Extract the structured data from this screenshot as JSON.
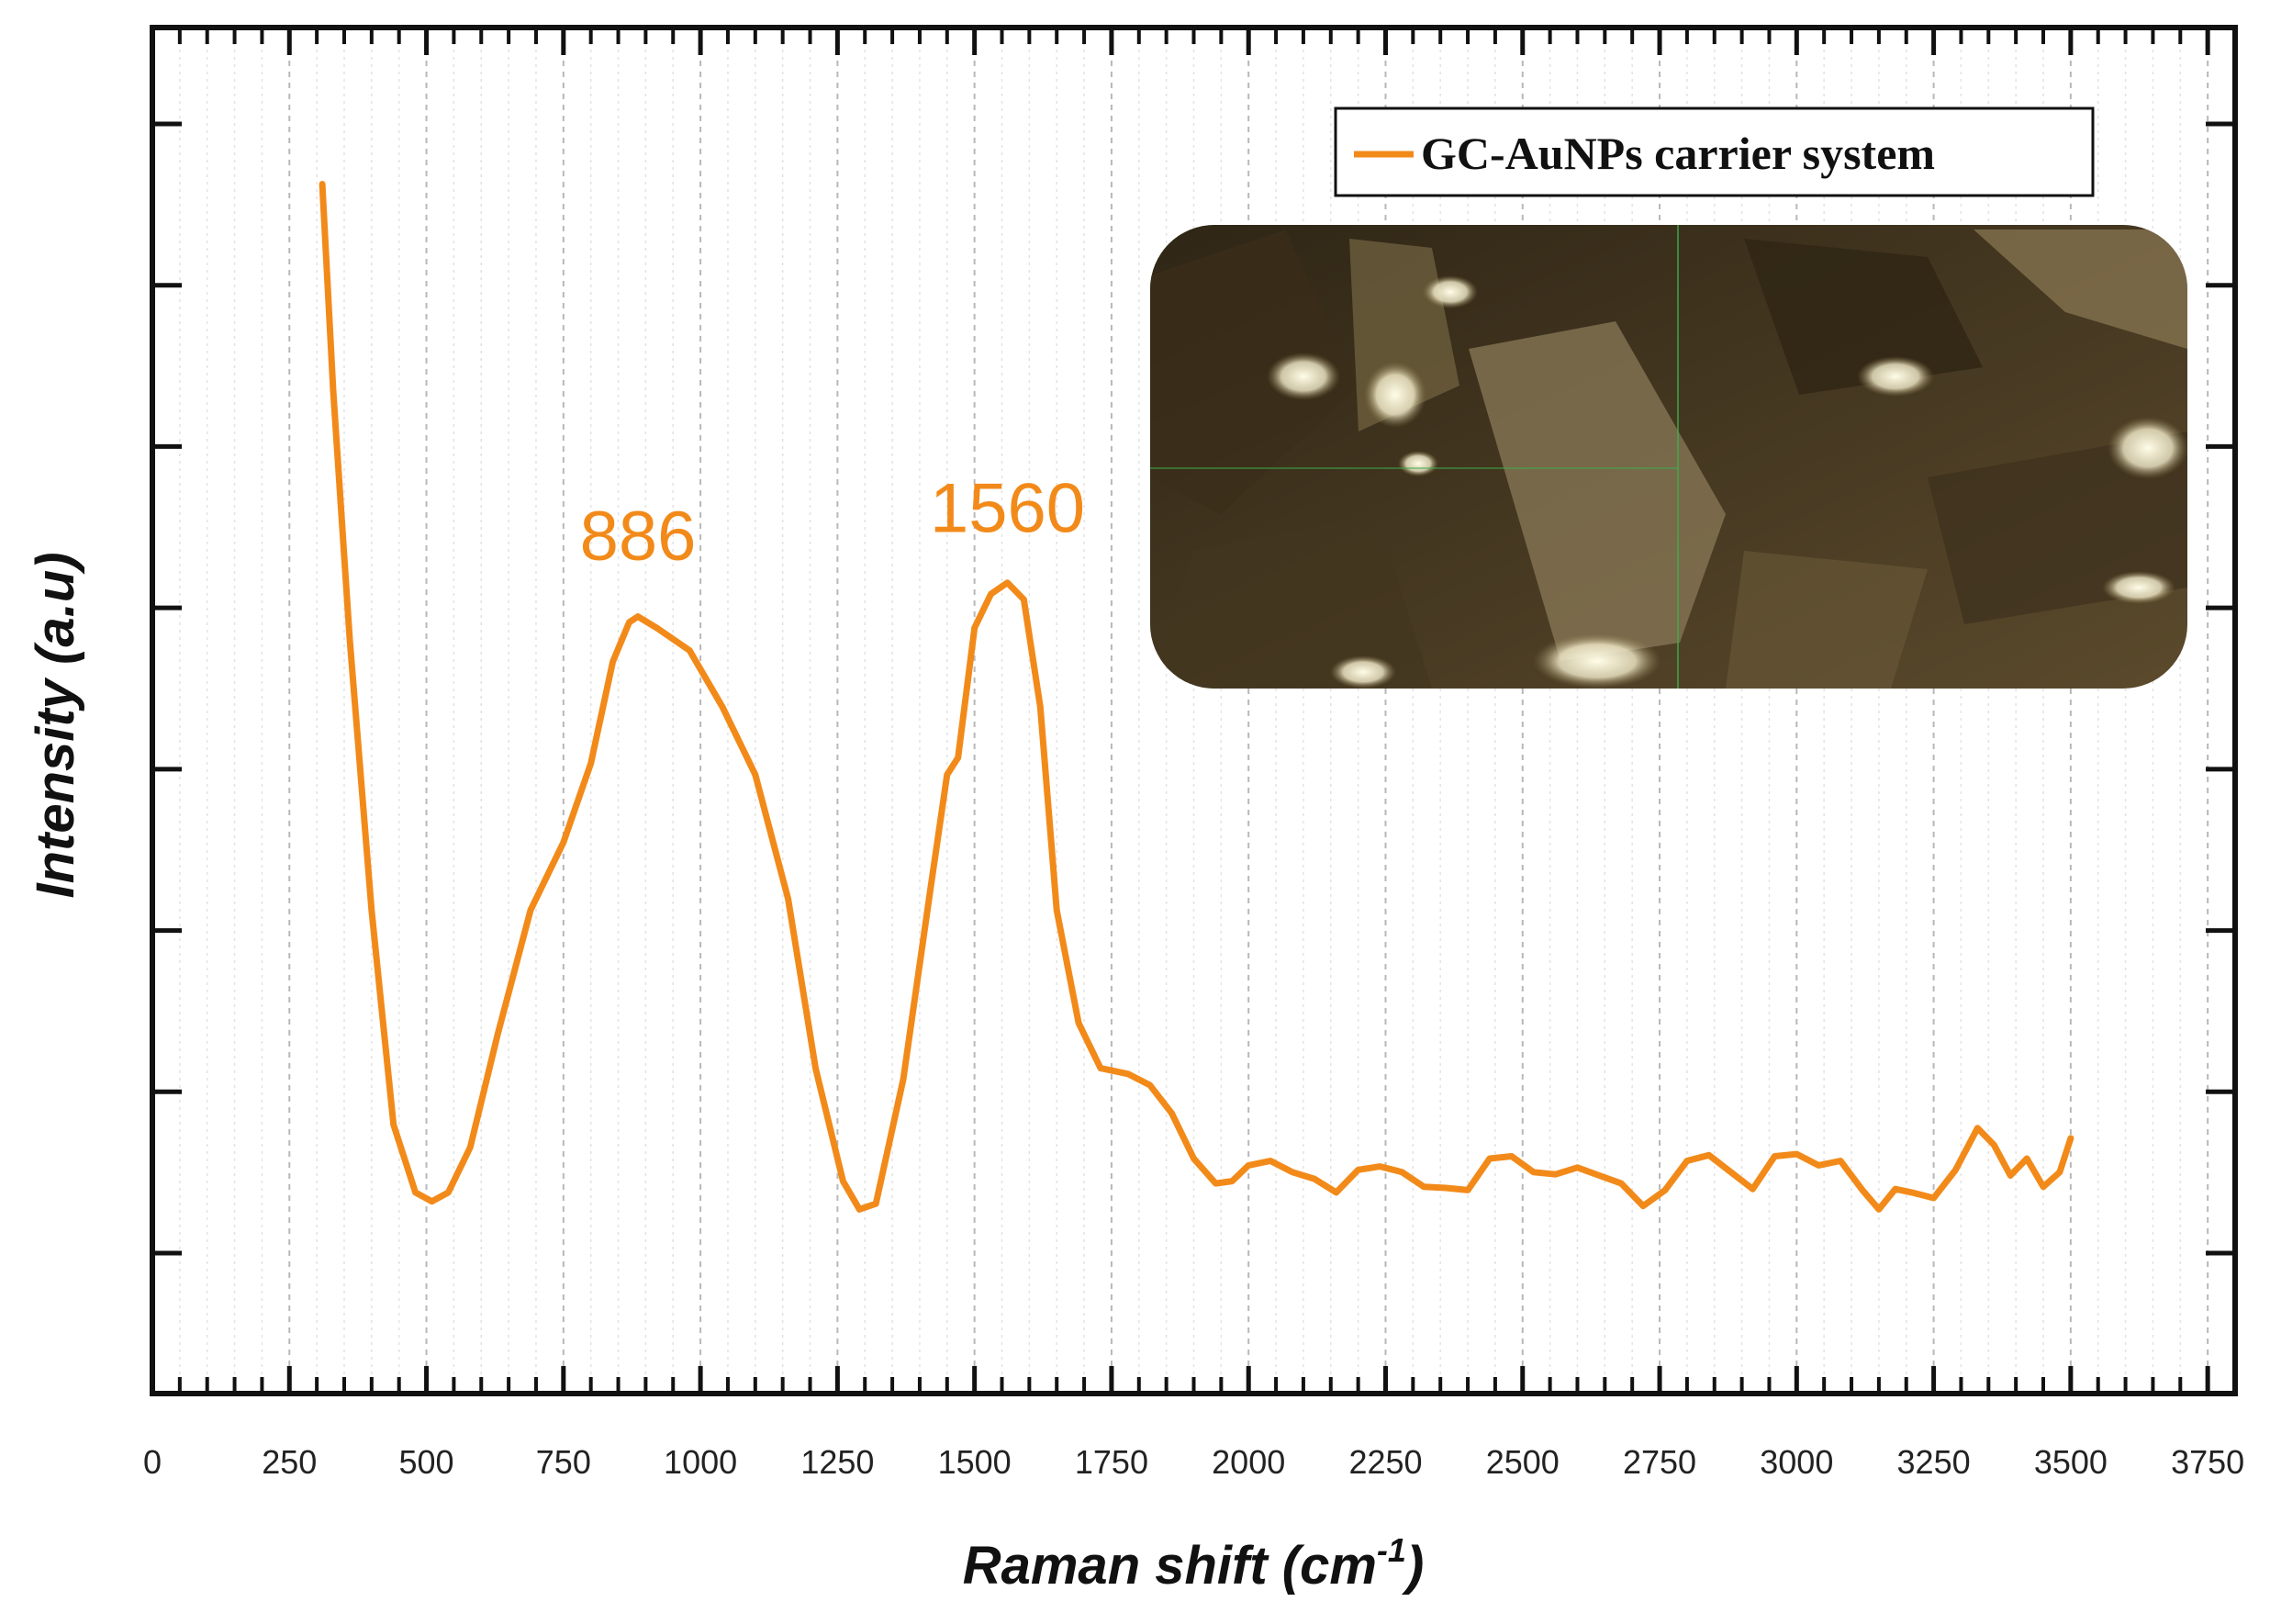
{
  "chart_data": {
    "type": "line",
    "title": "",
    "xlabel": "Raman shift (cm",
    "xlabel_superscript": "-1",
    "xlabel_close": ")",
    "ylabel": "Intensity (a.u)",
    "xlim": [
      0,
      3800
    ],
    "ylim": [
      0,
      1
    ],
    "x_ticks": [
      0,
      250,
      500,
      750,
      1000,
      1250,
      1500,
      1750,
      2000,
      2250,
      2500,
      2750,
      3000,
      3250,
      3500,
      3750
    ],
    "x_tick_labels": [
      "0",
      "250",
      "500",
      "750",
      "1000",
      "1250",
      "1500",
      "1750",
      "2000",
      "2250",
      "2500",
      "2750",
      "3000",
      "3250",
      "3500",
      "3750"
    ],
    "y_tick_labels_shown": false,
    "grid": "vertical",
    "legend_position": "top-right",
    "color": "#f28a1a",
    "series": [
      {
        "name": "GC-AuNPs carrier system",
        "x": [
          310,
          330,
          360,
          400,
          440,
          480,
          510,
          540,
          580,
          630,
          690,
          750,
          800,
          840,
          870,
          886,
          920,
          980,
          1040,
          1100,
          1160,
          1210,
          1260,
          1290,
          1320,
          1370,
          1420,
          1450,
          1470,
          1500,
          1530,
          1560,
          1590,
          1620,
          1650,
          1690,
          1730,
          1780,
          1820,
          1860,
          1900,
          1940,
          1970,
          2000,
          2040,
          2080,
          2120,
          2160,
          2200,
          2240,
          2280,
          2320,
          2360,
          2400,
          2440,
          2480,
          2520,
          2560,
          2600,
          2640,
          2680,
          2720,
          2760,
          2800,
          2840,
          2880,
          2920,
          2960,
          3000,
          3040,
          3080,
          3120,
          3150,
          3180,
          3210,
          3250,
          3290,
          3330,
          3360,
          3390,
          3420,
          3450,
          3480,
          3500
        ],
        "y": [
          0.963,
          0.78,
          0.56,
          0.32,
          0.13,
          0.07,
          0.062,
          0.07,
          0.11,
          0.21,
          0.32,
          0.38,
          0.45,
          0.54,
          0.575,
          0.58,
          0.57,
          0.55,
          0.5,
          0.44,
          0.33,
          0.18,
          0.08,
          0.055,
          0.06,
          0.17,
          0.34,
          0.44,
          0.455,
          0.57,
          0.6,
          0.61,
          0.595,
          0.5,
          0.32,
          0.22,
          0.18,
          0.175,
          0.165,
          0.14,
          0.1,
          0.078,
          0.08,
          0.094,
          0.098,
          0.088,
          0.082,
          0.07,
          0.09,
          0.093,
          0.088,
          0.075,
          0.074,
          0.072,
          0.1,
          0.102,
          0.088,
          0.086,
          0.092,
          0.085,
          0.078,
          0.058,
          0.072,
          0.098,
          0.103,
          0.088,
          0.073,
          0.102,
          0.104,
          0.094,
          0.098,
          0.072,
          0.055,
          0.073,
          0.07,
          0.065,
          0.09,
          0.127,
          0.112,
          0.085,
          0.1,
          0.075,
          0.088,
          0.118
        ]
      }
    ],
    "annotations": [
      {
        "text": "886",
        "x": 886,
        "y": 0.63
      },
      {
        "text": "1560",
        "x": 1560,
        "y": 0.655
      }
    ],
    "inset": {
      "kind": "optical micrograph of sample",
      "icon": "micrograph-photo"
    }
  }
}
